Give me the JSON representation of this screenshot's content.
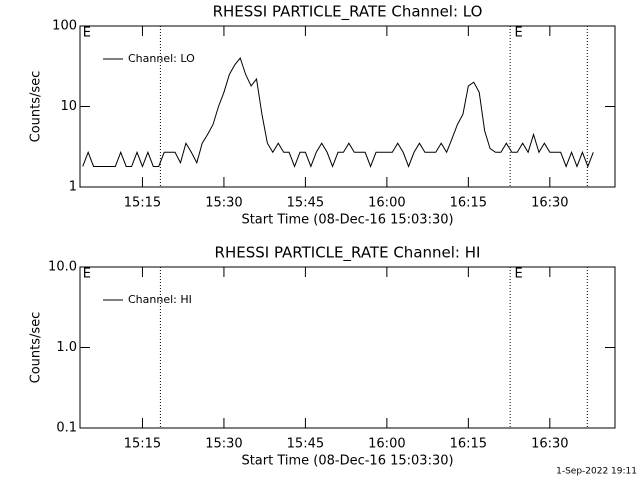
{
  "chart_data": [
    {
      "type": "line",
      "title": "RHESSI PARTICLE_RATE Channel: LO",
      "xlabel": "Start Time (08-Dec-16 15:03:30)",
      "ylabel": "Counts/sec",
      "x": [
        904,
        905,
        906,
        907,
        908,
        909,
        910,
        911,
        912,
        913,
        914,
        915,
        916,
        917,
        918,
        919,
        920,
        921,
        922,
        923,
        924,
        925,
        926,
        927,
        928,
        929,
        930,
        931,
        932,
        933,
        934,
        935,
        936,
        937,
        938,
        939,
        940,
        941,
        942,
        943,
        944,
        945,
        946,
        947,
        948,
        949,
        950,
        951,
        952,
        953,
        954,
        955,
        956,
        957,
        958,
        959,
        960,
        961,
        962,
        963,
        964,
        965,
        966,
        967,
        968,
        969,
        970,
        971,
        972,
        973,
        974,
        975,
        976,
        977,
        978,
        979,
        980,
        981,
        982,
        983,
        984,
        985,
        986,
        987,
        988,
        989,
        990,
        991,
        992,
        993,
        994,
        995,
        996,
        997,
        998
      ],
      "series": [
        {
          "name": "Channel: LO",
          "color": "#000000",
          "values": [
            1.8,
            2.7,
            1.8,
            1.8,
            1.8,
            1.8,
            1.8,
            2.7,
            1.8,
            1.8,
            2.7,
            1.8,
            2.7,
            1.8,
            1.8,
            2.7,
            2.7,
            2.7,
            2.0,
            3.5,
            2.7,
            2.0,
            3.5,
            4.5,
            6,
            10,
            15,
            25,
            33,
            40,
            25,
            18,
            22,
            8,
            3.5,
            2.7,
            3.5,
            2.7,
            2.7,
            1.8,
            2.7,
            2.7,
            1.8,
            2.7,
            3.5,
            2.7,
            1.8,
            2.7,
            2.7,
            3.5,
            2.7,
            2.7,
            2.7,
            1.8,
            2.7,
            2.7,
            2.7,
            2.7,
            3.5,
            2.7,
            1.8,
            2.7,
            3.5,
            2.7,
            2.7,
            2.7,
            3.5,
            2.7,
            4,
            6,
            8,
            18,
            20,
            15,
            5,
            3,
            2.7,
            2.7,
            3.5,
            2.7,
            2.7,
            3.5,
            2.7,
            4.5,
            2.7,
            3.5,
            2.7,
            2.7,
            2.7,
            1.8,
            2.7,
            1.8,
            2.7,
            1.8,
            2.7
          ]
        }
      ],
      "xlim": [
        903.5,
        1002
      ],
      "xticks": [
        {
          "value": 915,
          "label": "15:15"
        },
        {
          "value": 930,
          "label": "15:30"
        },
        {
          "value": 945,
          "label": "15:45"
        },
        {
          "value": 960,
          "label": "16:00"
        },
        {
          "value": 975,
          "label": "16:15"
        },
        {
          "value": 990,
          "label": "16:30"
        }
      ],
      "ylim": [
        1,
        100
      ],
      "yticks": [
        1,
        10,
        100
      ],
      "log_y": true,
      "vlines": [
        918.3,
        982.7,
        996.9
      ],
      "annotations": [
        {
          "text": "E",
          "x": 904
        },
        {
          "text": "E",
          "x": 983.5
        }
      ],
      "legend": "upper left"
    },
    {
      "type": "line",
      "title": "RHESSI PARTICLE_RATE Channel: HI",
      "xlabel": "Start Time (08-Dec-16 15:03:30)",
      "ylabel": "Counts/sec",
      "x": [],
      "series": [
        {
          "name": "Channel: HI",
          "color": "#000000",
          "values": []
        }
      ],
      "xlim": [
        903.5,
        1002
      ],
      "xticks": [
        {
          "value": 915,
          "label": "15:15"
        },
        {
          "value": 930,
          "label": "15:30"
        },
        {
          "value": 945,
          "label": "15:45"
        },
        {
          "value": 960,
          "label": "16:00"
        },
        {
          "value": 975,
          "label": "16:15"
        },
        {
          "value": 990,
          "label": "16:30"
        }
      ],
      "ylim": [
        0.1,
        10
      ],
      "yticks": [
        0.1,
        {
          "value": 1,
          "label": "1.0"
        },
        {
          "value": 10,
          "label": "10.0"
        }
      ],
      "log_y": true,
      "vlines": [
        918.3,
        982.7,
        996.9
      ],
      "annotations": [
        {
          "text": "E",
          "x": 904
        },
        {
          "text": "E",
          "x": 983.5
        }
      ],
      "legend": "upper left"
    }
  ],
  "footer": "1-Sep-2022 19:11"
}
